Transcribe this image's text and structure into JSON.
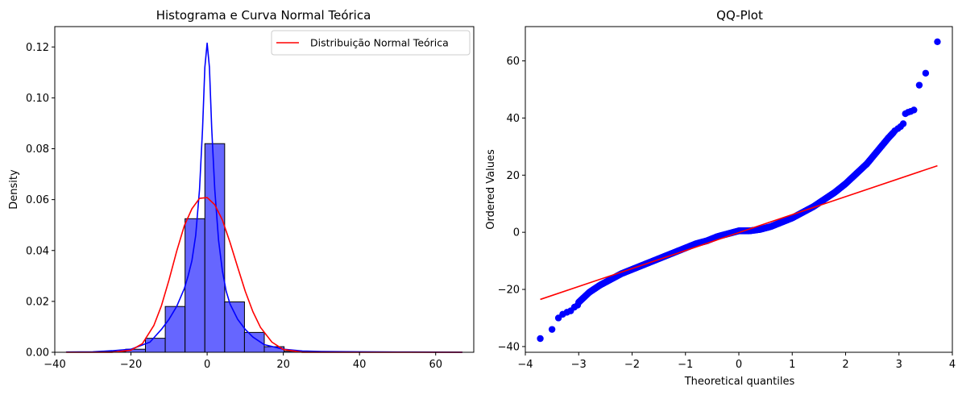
{
  "chart_data": [
    {
      "type": "bar",
      "subtype": "histogram-with-curves",
      "title": "Histograma e Curva Normal Teórica",
      "xlabel": "",
      "ylabel": "Density",
      "xlim": [
        -40,
        70
      ],
      "ylim": [
        0,
        0.128
      ],
      "xticks": [
        -40,
        -20,
        0,
        20,
        40,
        60
      ],
      "yticks": [
        0.0,
        0.02,
        0.04,
        0.06,
        0.08,
        0.1,
        0.12
      ],
      "ytick_labels": [
        "0.00",
        "0.02",
        "0.04",
        "0.06",
        "0.08",
        "0.10",
        "0.12"
      ],
      "grid": false,
      "legend": {
        "placement": "top-right",
        "entries": [
          "Distribuição Normal Teórica"
        ]
      },
      "colors": {
        "bars": "#6666ff",
        "kde": "#0000ff",
        "normal": "#ff0000",
        "edge": "#000000"
      },
      "histogram": {
        "bin_edges": [
          -37,
          -31.8,
          -26.6,
          -21.4,
          -16.2,
          -11,
          -5.8,
          -0.6,
          4.6,
          9.8,
          15,
          20.2,
          25.4,
          30.6,
          35.8,
          41,
          46.2,
          51.4,
          56.6,
          61.8,
          67
        ],
        "values": [
          5e-05,
          0.0001,
          0.0003,
          0.0012,
          0.0055,
          0.018,
          0.0525,
          0.082,
          0.0198,
          0.0078,
          0.0022,
          0.0004,
          0.0001,
          0.0001,
          5e-05,
          3e-05,
          2e-05,
          3e-05,
          2e-05,
          1e-05
        ]
      },
      "series": [
        {
          "name": "Distribuição Normal Teórica",
          "kind": "line",
          "x": [
            -37,
            -30,
            -25,
            -20,
            -17,
            -14,
            -12,
            -10,
            -8,
            -6,
            -4,
            -2,
            0,
            2,
            4,
            6,
            8,
            10,
            12,
            14,
            17,
            20,
            25,
            30,
            40,
            50,
            60,
            67
          ],
          "y": [
            0,
            0,
            1e-05,
            0.0008,
            0.0034,
            0.0105,
            0.0183,
            0.0285,
            0.0397,
            0.0497,
            0.0564,
            0.0605,
            0.0608,
            0.058,
            0.052,
            0.0432,
            0.0335,
            0.024,
            0.016,
            0.0098,
            0.004,
            0.0011,
            3e-05,
            0,
            0,
            0,
            0,
            0
          ]
        },
        {
          "name": "KDE",
          "kind": "line",
          "x": [
            -37,
            -30,
            -25,
            -20,
            -15,
            -12,
            -10,
            -8,
            -6,
            -5,
            -4,
            -3,
            -2,
            -1.2,
            -0.6,
            0,
            0.6,
            1.2,
            2,
            3,
            4,
            5,
            6,
            8,
            10,
            12,
            15,
            20,
            25,
            30,
            40,
            50,
            60,
            67
          ],
          "y": [
            0.0001,
            0.0002,
            0.0006,
            0.0012,
            0.004,
            0.009,
            0.013,
            0.018,
            0.025,
            0.03,
            0.036,
            0.046,
            0.064,
            0.088,
            0.112,
            0.1215,
            0.112,
            0.088,
            0.064,
            0.044,
            0.032,
            0.024,
            0.019,
            0.013,
            0.009,
            0.006,
            0.003,
            0.0012,
            0.0005,
            0.0003,
            0.0002,
            0.0001,
            5e-05,
            3e-05
          ]
        }
      ]
    },
    {
      "type": "scatter",
      "title": "QQ-Plot",
      "xlabel": "Theoretical quantiles",
      "ylabel": "Ordered Values",
      "xlim": [
        -4,
        4
      ],
      "ylim": [
        -42,
        72
      ],
      "xticks": [
        -4,
        -3,
        -2,
        -1,
        0,
        1,
        2,
        3,
        4
      ],
      "yticks": [
        -40,
        -20,
        0,
        20,
        40,
        60
      ],
      "grid": false,
      "colors": {
        "points": "#0000ff",
        "line": "#ff0000"
      },
      "fit_line": {
        "x": [
          -3.72,
          3.72
        ],
        "y": [
          -23.5,
          23.3
        ]
      },
      "quantile_curve": {
        "x": [
          -3.0,
          -2.8,
          -2.6,
          -2.4,
          -2.2,
          -2.0,
          -1.8,
          -1.6,
          -1.4,
          -1.2,
          -1.0,
          -0.8,
          -0.6,
          -0.4,
          -0.2,
          0.0,
          0.2,
          0.4,
          0.6,
          0.8,
          1.0,
          1.2,
          1.4,
          1.6,
          1.8,
          2.0,
          2.2,
          2.4,
          2.6,
          2.8,
          2.9
        ],
        "y": [
          -24.5,
          -21.0,
          -18.5,
          -16.5,
          -14.5,
          -13.0,
          -11.5,
          -10.0,
          -8.5,
          -7.0,
          -5.5,
          -4.0,
          -3.0,
          -1.5,
          -0.5,
          0.5,
          0.5,
          1.0,
          2.0,
          3.5,
          5.0,
          7.0,
          9.0,
          11.5,
          14.0,
          17.0,
          20.5,
          24.0,
          28.5,
          33.0,
          35.0
        ]
      },
      "tail_points": [
        {
          "x": -3.72,
          "y": -37.2
        },
        {
          "x": -3.5,
          "y": -34.0
        },
        {
          "x": -3.38,
          "y": -30.0
        },
        {
          "x": -3.3,
          "y": -28.7
        },
        {
          "x": -3.22,
          "y": -28.0
        },
        {
          "x": -3.15,
          "y": -27.5
        },
        {
          "x": -3.08,
          "y": -26.2
        },
        {
          "x": -3.02,
          "y": -25.5
        },
        {
          "x": 2.92,
          "y": 35.5
        },
        {
          "x": 2.98,
          "y": 36.3
        },
        {
          "x": 3.03,
          "y": 37.0
        },
        {
          "x": 3.08,
          "y": 38.0
        },
        {
          "x": 3.12,
          "y": 41.5
        },
        {
          "x": 3.17,
          "y": 42.0
        },
        {
          "x": 3.22,
          "y": 42.3
        },
        {
          "x": 3.28,
          "y": 42.8
        },
        {
          "x": 3.38,
          "y": 51.5
        },
        {
          "x": 3.5,
          "y": 55.7
        },
        {
          "x": 3.72,
          "y": 66.7
        }
      ]
    }
  ]
}
